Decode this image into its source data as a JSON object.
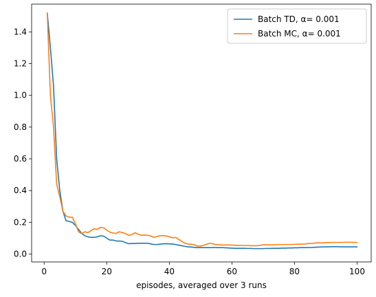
{
  "chart_data": {
    "type": "line",
    "title": "",
    "xlabel": "episodes, averaged over 3 runs",
    "ylabel": "",
    "xlim": [
      -4,
      104.5
    ],
    "ylim": [
      -0.05,
      1.575
    ],
    "xticks": [
      0,
      20,
      40,
      60,
      80,
      100
    ],
    "yticks": [
      0.0,
      0.2,
      0.4,
      0.6,
      0.8,
      1.0,
      1.2,
      1.4
    ],
    "grid": false,
    "legend_position": "top-right",
    "series": [
      {
        "name": "Batch TD, α= 0.001",
        "color": "#1f77b4",
        "x": [
          1,
          2,
          3,
          4,
          5,
          6,
          7,
          8,
          9,
          10,
          11,
          12,
          13,
          14,
          15,
          16,
          17,
          18,
          19,
          20,
          21,
          22,
          23,
          24,
          25,
          26,
          27,
          28,
          29,
          30,
          31,
          32,
          33,
          34,
          35,
          36,
          37,
          38,
          39,
          40,
          41,
          42,
          43,
          44,
          45,
          46,
          47,
          48,
          49,
          50,
          51,
          52,
          53,
          54,
          55,
          56,
          57,
          58,
          59,
          60,
          61,
          62,
          63,
          64,
          65,
          66,
          67,
          68,
          69,
          70,
          71,
          72,
          73,
          74,
          75,
          76,
          77,
          78,
          79,
          80,
          81,
          82,
          83,
          84,
          85,
          86,
          87,
          88,
          89,
          90,
          91,
          92,
          93,
          94,
          95,
          96,
          97,
          98,
          99,
          100
        ],
        "y": [
          1.52,
          1.3,
          1.06,
          0.6,
          0.4,
          0.27,
          0.21,
          0.205,
          0.2,
          0.18,
          0.155,
          0.13,
          0.115,
          0.108,
          0.105,
          0.105,
          0.108,
          0.115,
          0.113,
          0.1,
          0.088,
          0.088,
          0.082,
          0.082,
          0.08,
          0.072,
          0.065,
          0.066,
          0.066,
          0.068,
          0.068,
          0.068,
          0.068,
          0.064,
          0.06,
          0.06,
          0.062,
          0.064,
          0.065,
          0.064,
          0.063,
          0.06,
          0.056,
          0.052,
          0.048,
          0.045,
          0.044,
          0.042,
          0.04,
          0.04,
          0.04,
          0.04,
          0.04,
          0.041,
          0.04,
          0.04,
          0.04,
          0.039,
          0.038,
          0.037,
          0.036,
          0.036,
          0.036,
          0.036,
          0.035,
          0.035,
          0.034,
          0.034,
          0.034,
          0.034,
          0.035,
          0.035,
          0.036,
          0.036,
          0.036,
          0.037,
          0.037,
          0.038,
          0.038,
          0.039,
          0.039,
          0.04,
          0.04,
          0.04,
          0.041,
          0.042,
          0.043,
          0.044,
          0.045,
          0.045,
          0.045,
          0.046,
          0.046,
          0.046,
          0.045,
          0.045,
          0.045,
          0.045,
          0.045,
          0.045
        ]
      },
      {
        "name": "Batch MC, α= 0.001",
        "color": "#ff7f0e",
        "x": [
          1,
          2,
          3,
          4,
          5,
          6,
          7,
          8,
          9,
          10,
          11,
          12,
          13,
          14,
          15,
          16,
          17,
          18,
          19,
          20,
          21,
          22,
          23,
          24,
          25,
          26,
          27,
          28,
          29,
          30,
          31,
          32,
          33,
          34,
          35,
          36,
          37,
          38,
          39,
          40,
          41,
          42,
          43,
          44,
          45,
          46,
          47,
          48,
          49,
          50,
          51,
          52,
          53,
          54,
          55,
          56,
          57,
          58,
          59,
          60,
          61,
          62,
          63,
          64,
          65,
          66,
          67,
          68,
          69,
          70,
          71,
          72,
          73,
          74,
          75,
          76,
          77,
          78,
          79,
          80,
          81,
          82,
          83,
          84,
          85,
          86,
          87,
          88,
          89,
          90,
          91,
          92,
          93,
          94,
          95,
          96,
          97,
          98,
          99,
          100
        ],
        "y": [
          1.52,
          1.0,
          0.8,
          0.44,
          0.36,
          0.27,
          0.24,
          0.232,
          0.232,
          0.19,
          0.14,
          0.128,
          0.14,
          0.135,
          0.148,
          0.16,
          0.155,
          0.168,
          0.165,
          0.15,
          0.138,
          0.132,
          0.13,
          0.14,
          0.135,
          0.128,
          0.118,
          0.122,
          0.134,
          0.125,
          0.118,
          0.12,
          0.118,
          0.114,
          0.105,
          0.11,
          0.115,
          0.116,
          0.114,
          0.108,
          0.102,
          0.104,
          0.092,
          0.08,
          0.068,
          0.062,
          0.062,
          0.058,
          0.05,
          0.05,
          0.055,
          0.062,
          0.068,
          0.064,
          0.058,
          0.058,
          0.057,
          0.057,
          0.057,
          0.056,
          0.055,
          0.053,
          0.054,
          0.054,
          0.054,
          0.052,
          0.052,
          0.052,
          0.055,
          0.058,
          0.058,
          0.057,
          0.058,
          0.058,
          0.06,
          0.06,
          0.06,
          0.06,
          0.06,
          0.061,
          0.062,
          0.062,
          0.063,
          0.065,
          0.067,
          0.068,
          0.07,
          0.07,
          0.07,
          0.072,
          0.072,
          0.073,
          0.073,
          0.073,
          0.073,
          0.074,
          0.074,
          0.074,
          0.073,
          0.073
        ]
      }
    ]
  }
}
